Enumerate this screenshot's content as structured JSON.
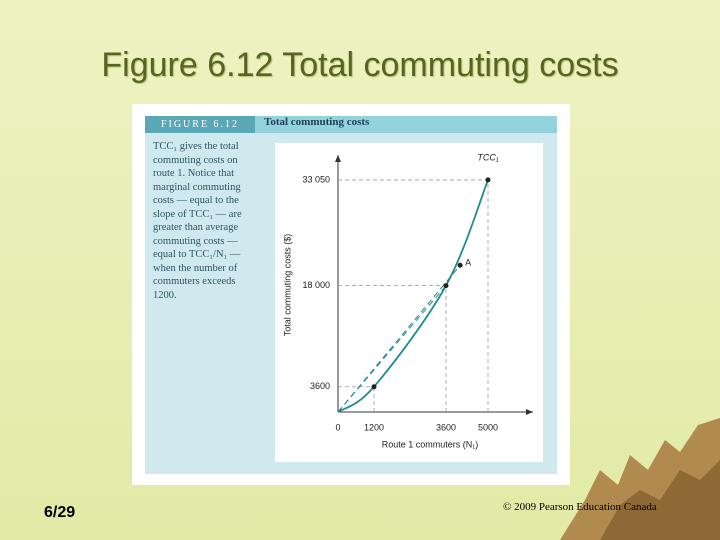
{
  "slide_title": "Figure 6.12 Total commuting costs",
  "figure_label": "FIGURE 6.12",
  "figure_heading": "Total commuting costs",
  "caption": "TCC₁ gives the total commuting costs on route 1. Notice that marginal commuting costs — equal to the slope of TCC₁ — are greater than average commuting costs — equal to TCC₁/N₁ — when the number of commuters exceeds 1200.",
  "page_number": "6/29",
  "copyright": "© 2009 Pearson Education Canada",
  "chart_data": {
    "type": "line",
    "x_label": "Route 1 commuters (N₁)",
    "y_label": "Total commuting costs ($)",
    "x": [
      0,
      1200,
      3600,
      5000
    ],
    "series": [
      {
        "name": "TCC₁",
        "color": "#1f8a8c",
        "values": [
          0,
          3600,
          18000,
          33050
        ]
      }
    ],
    "xlim": [
      0,
      6500
    ],
    "ylim": [
      0,
      36600
    ],
    "xticks": [
      0,
      1200,
      3600,
      5000
    ],
    "yticks": [
      3600,
      {
        "value": 18000,
        "label": "18 000"
      },
      {
        "value": 33050,
        "label": "33 050"
      }
    ],
    "annotations": [
      {
        "text": "A",
        "x": 4070,
        "y": 20900
      }
    ]
  }
}
